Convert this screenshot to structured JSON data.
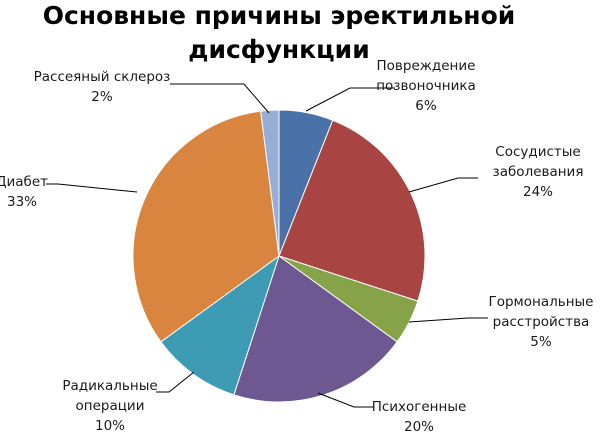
{
  "chart_data": {
    "type": "pie",
    "title": [
      "Основные причины эректильной",
      "дисфункции"
    ],
    "slices": [
      {
        "label": [
          "Повреждение",
          "позвоночника"
        ],
        "value_text": "6%",
        "value": 6,
        "color": "#4a72a8"
      },
      {
        "label": [
          "Сосудистые",
          "заболевания"
        ],
        "value_text": "24%",
        "value": 24,
        "color": "#a84542"
      },
      {
        "label": [
          "Гормональные",
          "расстройства"
        ],
        "value_text": "5%",
        "value": 5,
        "color": "#87a34a"
      },
      {
        "label": [
          "Психогенные"
        ],
        "value_text": "20%",
        "value": 20,
        "color": "#6e5891"
      },
      {
        "label": [
          "Радикальные",
          "операции"
        ],
        "value_text": "10%",
        "value": 10,
        "color": "#3d9bb3"
      },
      {
        "label": [
          "Диабет"
        ],
        "value_text": "33%",
        "value": 33,
        "color": "#d98540"
      },
      {
        "label": [
          "Рассеяный склероз"
        ],
        "value_text": "2%",
        "value": 2,
        "color": "#96aed6"
      }
    ],
    "start_angle": "12 o'clock",
    "direction": "clockwise",
    "legend": "none (data labels with leader lines)"
  }
}
